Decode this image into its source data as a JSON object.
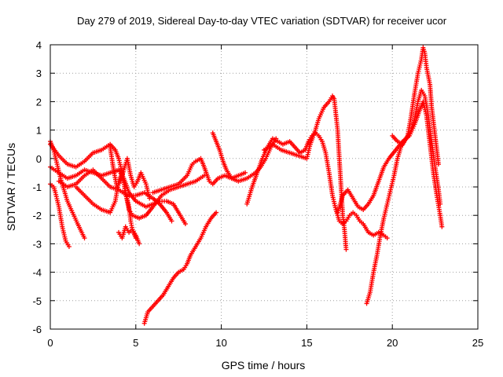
{
  "chart_data": {
    "type": "scatter",
    "title": "Day 279 of 2019, Sidereal Day-to-day VTEC variation (SDTVAR) for receiver ucor",
    "xlabel": "GPS time / hours",
    "ylabel": "SDTVAR / TECUs",
    "xlim": [
      0,
      25
    ],
    "ylim": [
      -6,
      4
    ],
    "xticks": [
      0,
      5,
      10,
      15,
      20,
      25
    ],
    "yticks": [
      -6,
      -5,
      -4,
      -3,
      -2,
      -1,
      0,
      1,
      2,
      3,
      4
    ],
    "xtick_labels": [
      "0",
      "5",
      "10",
      "15",
      "20",
      "25"
    ],
    "ytick_labels": [
      "-6",
      "-5",
      "-4",
      "-3",
      "-2",
      "-1",
      "0",
      "1",
      "2",
      "3",
      "4"
    ],
    "grid": true,
    "marker": "+",
    "color": "#ff0000",
    "series": [
      {
        "name": "trace-1",
        "points": [
          [
            0.0,
            0.6
          ],
          [
            0.2,
            0.3
          ],
          [
            0.4,
            -0.2
          ],
          [
            0.6,
            -0.7
          ],
          [
            0.8,
            -1.1
          ],
          [
            1.0,
            -1.5
          ],
          [
            1.3,
            -1.9
          ],
          [
            1.6,
            -2.3
          ],
          [
            2.0,
            -2.8
          ]
        ]
      },
      {
        "name": "trace-2",
        "points": [
          [
            0.0,
            -0.9
          ],
          [
            0.2,
            -1.0
          ],
          [
            0.3,
            -1.2
          ],
          [
            0.5,
            -1.7
          ],
          [
            0.7,
            -2.4
          ],
          [
            0.9,
            -2.9
          ],
          [
            1.1,
            -3.1
          ]
        ]
      },
      {
        "name": "trace-3",
        "points": [
          [
            0.0,
            -0.3
          ],
          [
            0.5,
            -0.5
          ],
          [
            1.0,
            -0.7
          ],
          [
            1.5,
            -0.6
          ],
          [
            2.0,
            -0.4
          ],
          [
            2.5,
            -0.5
          ],
          [
            3.0,
            -0.6
          ],
          [
            3.5,
            -0.5
          ],
          [
            4.0,
            -0.4
          ],
          [
            4.3,
            -0.7
          ],
          [
            4.6,
            -1.2
          ],
          [
            5.0,
            -1.5
          ],
          [
            5.3,
            -1.6
          ],
          [
            5.6,
            -1.7
          ],
          [
            6.0,
            -1.6
          ],
          [
            6.4,
            -1.5
          ],
          [
            6.8,
            -1.5
          ],
          [
            7.2,
            -1.6
          ],
          [
            7.6,
            -2.0
          ],
          [
            7.9,
            -2.3
          ]
        ]
      },
      {
        "name": "trace-4",
        "points": [
          [
            0.0,
            0.5
          ],
          [
            0.5,
            0.1
          ],
          [
            1.0,
            -0.2
          ],
          [
            1.5,
            -0.3
          ],
          [
            2.0,
            -0.1
          ],
          [
            2.5,
            0.2
          ],
          [
            3.0,
            0.3
          ],
          [
            3.5,
            0.5
          ],
          [
            3.8,
            0.3
          ],
          [
            4.0,
            0.0
          ],
          [
            4.2,
            -0.5
          ],
          [
            4.4,
            -1.2
          ],
          [
            4.6,
            -1.7
          ],
          [
            4.7,
            -2.2
          ],
          [
            4.8,
            -2.5
          ],
          [
            5.0,
            -2.7
          ],
          [
            5.2,
            -3.0
          ]
        ]
      },
      {
        "name": "trace-5",
        "points": [
          [
            1.5,
            -1.0
          ],
          [
            2.0,
            -1.3
          ],
          [
            2.5,
            -1.6
          ],
          [
            3.0,
            -1.8
          ],
          [
            3.5,
            -1.9
          ],
          [
            3.8,
            -1.5
          ],
          [
            4.0,
            -0.8
          ],
          [
            4.2,
            -0.5
          ],
          [
            4.4,
            -1.2
          ],
          [
            4.6,
            -1.8
          ],
          [
            4.8,
            -2.0
          ],
          [
            5.2,
            -2.1
          ],
          [
            5.6,
            -2.0
          ],
          [
            6.0,
            -1.7
          ],
          [
            6.5,
            -1.3
          ],
          [
            7.0,
            -1.1
          ],
          [
            7.5,
            -1.0
          ],
          [
            8.0,
            -0.9
          ],
          [
            8.5,
            -0.8
          ],
          [
            9.0,
            -0.6
          ]
        ]
      },
      {
        "name": "trace-6",
        "points": [
          [
            4.0,
            -2.6
          ],
          [
            4.2,
            -2.8
          ],
          [
            4.4,
            -2.4
          ],
          [
            4.6,
            -2.6
          ],
          [
            4.8,
            -2.5
          ],
          [
            5.0,
            -2.8
          ]
        ]
      },
      {
        "name": "trace-7",
        "points": [
          [
            3.5,
            0.4
          ],
          [
            3.7,
            -0.4
          ],
          [
            3.9,
            -1.0
          ],
          [
            4.1,
            -0.8
          ],
          [
            4.3,
            -0.4
          ],
          [
            4.5,
            0.0
          ],
          [
            4.7,
            -0.6
          ],
          [
            4.9,
            -1.0
          ],
          [
            5.1,
            -0.8
          ],
          [
            5.3,
            -0.5
          ],
          [
            5.6,
            -0.9
          ],
          [
            5.8,
            -1.4
          ]
        ]
      },
      {
        "name": "trace-8",
        "points": [
          [
            5.5,
            -5.8
          ],
          [
            5.7,
            -5.4
          ],
          [
            6.0,
            -5.2
          ],
          [
            6.3,
            -5.0
          ],
          [
            6.6,
            -4.8
          ],
          [
            6.9,
            -4.5
          ],
          [
            7.2,
            -4.2
          ],
          [
            7.5,
            -4.0
          ],
          [
            7.8,
            -3.9
          ],
          [
            8.0,
            -3.7
          ],
          [
            8.2,
            -3.4
          ],
          [
            8.5,
            -3.1
          ],
          [
            8.8,
            -2.8
          ],
          [
            9.1,
            -2.4
          ],
          [
            9.4,
            -2.1
          ],
          [
            9.7,
            -1.9
          ]
        ]
      },
      {
        "name": "trace-9",
        "points": [
          [
            6.0,
            -1.2
          ],
          [
            6.5,
            -1.1
          ],
          [
            7.0,
            -1.0
          ],
          [
            7.5,
            -0.9
          ],
          [
            8.0,
            -0.6
          ],
          [
            8.3,
            -0.2
          ],
          [
            8.5,
            -0.1
          ],
          [
            8.8,
            0.0
          ],
          [
            9.0,
            -0.3
          ],
          [
            9.3,
            -0.8
          ],
          [
            9.5,
            -0.9
          ],
          [
            9.8,
            -0.7
          ],
          [
            10.2,
            -0.6
          ],
          [
            10.6,
            -0.7
          ],
          [
            11.0,
            -0.6
          ],
          [
            11.4,
            -0.5
          ]
        ]
      },
      {
        "name": "trace-10",
        "points": [
          [
            9.5,
            0.9
          ],
          [
            9.7,
            0.6
          ],
          [
            9.9,
            0.3
          ],
          [
            10.1,
            -0.1
          ],
          [
            10.3,
            -0.4
          ],
          [
            10.6,
            -0.7
          ],
          [
            11.0,
            -0.8
          ],
          [
            11.5,
            -0.7
          ],
          [
            12.0,
            -0.5
          ],
          [
            12.3,
            -0.3
          ],
          [
            12.6,
            0.0
          ],
          [
            12.9,
            0.4
          ],
          [
            13.2,
            0.7
          ]
        ]
      },
      {
        "name": "trace-11",
        "points": [
          [
            11.5,
            -1.6
          ],
          [
            11.8,
            -1.0
          ],
          [
            12.1,
            -0.5
          ],
          [
            12.4,
            0.0
          ],
          [
            12.7,
            0.4
          ],
          [
            13.0,
            0.7
          ],
          [
            13.3,
            0.6
          ],
          [
            13.6,
            0.5
          ],
          [
            14.0,
            0.6
          ],
          [
            14.3,
            0.4
          ],
          [
            14.6,
            0.2
          ],
          [
            14.9,
            0.3
          ],
          [
            15.1,
            0.6
          ],
          [
            15.3,
            0.8
          ],
          [
            15.5,
            0.9
          ],
          [
            15.7,
            0.8
          ],
          [
            15.9,
            0.6
          ],
          [
            16.1,
            0.2
          ],
          [
            16.3,
            -0.5
          ],
          [
            16.5,
            -1.3
          ],
          [
            16.7,
            -1.8
          ],
          [
            16.9,
            -2.2
          ],
          [
            17.1,
            -2.3
          ],
          [
            17.3,
            -2.2
          ],
          [
            17.5,
            -2.0
          ],
          [
            17.7,
            -1.9
          ],
          [
            17.9,
            -2.0
          ],
          [
            18.1,
            -2.2
          ],
          [
            18.3,
            -2.3
          ],
          [
            18.6,
            -2.6
          ],
          [
            18.9,
            -2.7
          ],
          [
            19.2,
            -2.6
          ],
          [
            19.5,
            -2.7
          ],
          [
            19.7,
            -2.8
          ]
        ]
      },
      {
        "name": "trace-12",
        "points": [
          [
            12.5,
            0.3
          ],
          [
            13.0,
            0.5
          ],
          [
            13.5,
            0.3
          ],
          [
            14.0,
            0.2
          ],
          [
            14.5,
            0.1
          ],
          [
            15.0,
            0.0
          ],
          [
            15.2,
            0.5
          ],
          [
            15.5,
            1.0
          ],
          [
            15.7,
            1.4
          ],
          [
            16.0,
            1.8
          ],
          [
            16.3,
            2.0
          ],
          [
            16.5,
            2.2
          ],
          [
            16.6,
            2.1
          ],
          [
            16.8,
            1.0
          ],
          [
            16.9,
            0.0
          ],
          [
            17.0,
            -1.0
          ],
          [
            17.1,
            -2.0
          ],
          [
            17.2,
            -2.5
          ],
          [
            17.3,
            -3.2
          ]
        ]
      },
      {
        "name": "trace-13",
        "points": [
          [
            16.8,
            -1.9
          ],
          [
            17.1,
            -1.3
          ],
          [
            17.4,
            -1.1
          ],
          [
            17.7,
            -1.4
          ],
          [
            18.0,
            -1.7
          ],
          [
            18.3,
            -1.8
          ],
          [
            18.6,
            -1.6
          ],
          [
            18.9,
            -1.3
          ],
          [
            19.2,
            -0.8
          ],
          [
            19.5,
            -0.3
          ],
          [
            19.8,
            0.0
          ],
          [
            20.2,
            0.3
          ],
          [
            20.6,
            0.6
          ],
          [
            21.0,
            0.8
          ],
          [
            21.3,
            1.2
          ],
          [
            21.6,
            1.7
          ],
          [
            21.8,
            2.0
          ],
          [
            22.0,
            1.5
          ],
          [
            22.2,
            0.5
          ],
          [
            22.4,
            -0.5
          ],
          [
            22.6,
            -1.3
          ],
          [
            22.8,
            -2.0
          ],
          [
            22.9,
            -2.4
          ]
        ]
      },
      {
        "name": "trace-14",
        "points": [
          [
            18.5,
            -5.1
          ],
          [
            18.7,
            -4.7
          ],
          [
            18.9,
            -4.0
          ],
          [
            19.1,
            -3.4
          ],
          [
            19.3,
            -2.7
          ],
          [
            19.5,
            -2.1
          ],
          [
            19.7,
            -1.6
          ],
          [
            19.9,
            -1.1
          ],
          [
            20.1,
            -0.6
          ],
          [
            20.3,
            0.0
          ],
          [
            20.5,
            0.4
          ],
          [
            20.8,
            0.7
          ],
          [
            21.1,
            1.0
          ],
          [
            21.3,
            1.4
          ],
          [
            21.5,
            2.0
          ],
          [
            21.7,
            2.4
          ],
          [
            21.9,
            2.2
          ],
          [
            22.1,
            1.5
          ],
          [
            22.3,
            0.6
          ],
          [
            22.5,
            -0.3
          ],
          [
            22.7,
            -1.1
          ],
          [
            22.8,
            -1.6
          ]
        ]
      },
      {
        "name": "trace-15",
        "points": [
          [
            20.0,
            0.8
          ],
          [
            20.3,
            0.6
          ],
          [
            20.6,
            0.5
          ],
          [
            20.9,
            0.8
          ],
          [
            21.1,
            1.5
          ],
          [
            21.3,
            2.3
          ],
          [
            21.5,
            3.0
          ],
          [
            21.7,
            3.5
          ],
          [
            21.8,
            3.9
          ],
          [
            21.9,
            3.7
          ],
          [
            22.0,
            3.2
          ],
          [
            22.2,
            2.6
          ],
          [
            22.3,
            1.8
          ],
          [
            22.5,
            0.8
          ],
          [
            22.7,
            -0.2
          ]
        ]
      },
      {
        "name": "trace-16",
        "points": [
          [
            0.5,
            -0.8
          ],
          [
            1.0,
            -1.0
          ],
          [
            1.5,
            -0.9
          ],
          [
            2.0,
            -0.6
          ],
          [
            2.5,
            -0.4
          ],
          [
            3.0,
            -0.7
          ],
          [
            3.5,
            -1.0
          ],
          [
            4.0,
            -1.1
          ],
          [
            4.5,
            -1.3
          ],
          [
            5.0,
            -1.3
          ],
          [
            5.5,
            -1.2
          ],
          [
            6.0,
            -1.4
          ],
          [
            6.4,
            -1.6
          ],
          [
            6.8,
            -1.9
          ],
          [
            7.1,
            -2.2
          ]
        ]
      }
    ]
  }
}
